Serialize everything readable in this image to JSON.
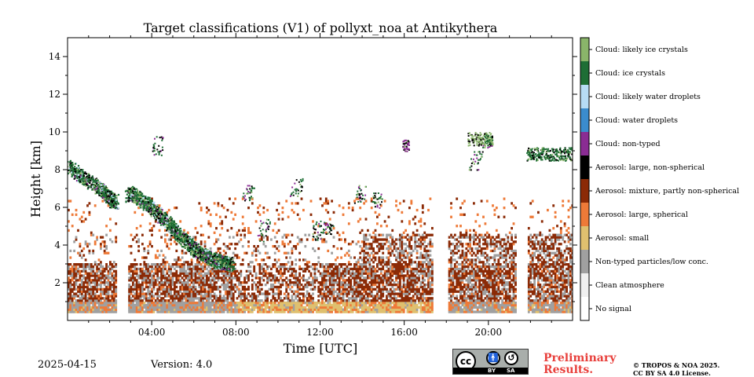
{
  "chart_data": {
    "type": "heatmap",
    "title": "Target classifications (V1) of pollyxt_noa at Antikythera",
    "xlabel": "Time [UTC]",
    "ylabel": "Height [km]",
    "xlim": [
      0,
      24
    ],
    "ylim": [
      0,
      15
    ],
    "x_ticks": [
      {
        "value": 4,
        "label": "04:00"
      },
      {
        "value": 8,
        "label": "08:00"
      },
      {
        "value": 12,
        "label": "12:00"
      },
      {
        "value": 16,
        "label": "16:00"
      },
      {
        "value": 20,
        "label": "20:00"
      }
    ],
    "y_ticks": [
      {
        "value": 2,
        "label": "2"
      },
      {
        "value": 4,
        "label": "4"
      },
      {
        "value": 6,
        "label": "6"
      },
      {
        "value": 8,
        "label": "8"
      },
      {
        "value": 10,
        "label": "10"
      },
      {
        "value": 12,
        "label": "12"
      },
      {
        "value": 14,
        "label": "14"
      }
    ],
    "classes": [
      {
        "id": 0,
        "label": "No signal",
        "color": "#ffffff"
      },
      {
        "id": 1,
        "label": "Clean atmosphere",
        "color": "#f0f0f0"
      },
      {
        "id": 2,
        "label": "Non-typed particles/low conc.",
        "color": "#a0a0a0"
      },
      {
        "id": 3,
        "label": "Aerosol: small",
        "color": "#dfc06f"
      },
      {
        "id": 4,
        "label": "Aerosol: large, spherical",
        "color": "#ee7a38"
      },
      {
        "id": 5,
        "label": "Aerosol: mixture, partly non-spherical",
        "color": "#8b2a06"
      },
      {
        "id": 6,
        "label": "Aerosol: large, non-spherical",
        "color": "#000000"
      },
      {
        "id": 7,
        "label": "Cloud: non-typed",
        "color": "#8a2c93"
      },
      {
        "id": 8,
        "label": "Cloud: water droplets",
        "color": "#3b8ccd"
      },
      {
        "id": 9,
        "label": "Cloud: likely water droplets",
        "color": "#b7dcf5"
      },
      {
        "id": 10,
        "label": "Cloud: ice crystals",
        "color": "#1e6e35"
      },
      {
        "id": 11,
        "label": "Cloud: likely ice crystals",
        "color": "#8ab56a"
      }
    ],
    "no_signal_gaps_hours": [
      [
        2.3,
        2.8
      ],
      [
        17.3,
        18.0
      ],
      [
        21.3,
        21.8
      ]
    ],
    "layers": [
      {
        "name": "near-surface non-typed layer",
        "class": 2,
        "t": [
          0.0,
          24.0
        ],
        "h": [
          0.4,
          1.0
        ]
      },
      {
        "name": "aerosol mixture layer",
        "class": 5,
        "t": [
          0.0,
          24.0
        ],
        "h": [
          1.0,
          4.5
        ]
      },
      {
        "name": "small aerosol near surface",
        "class": 3,
        "t": [
          8.0,
          17.3
        ],
        "h": [
          0.4,
          1.0
        ]
      },
      {
        "name": "large spherical aerosol near surface",
        "class": 4,
        "t": [
          0.0,
          9.0
        ],
        "h": [
          0.4,
          1.3
        ]
      },
      {
        "name": "descending ice cloud",
        "class": 10,
        "points": [
          [
            0.0,
            8.2
          ],
          [
            1.5,
            7.0
          ],
          [
            2.2,
            6.3
          ],
          [
            3.0,
            6.8
          ],
          [
            4.0,
            6.0
          ],
          [
            5.0,
            4.9
          ],
          [
            6.0,
            3.8
          ],
          [
            7.0,
            3.2
          ],
          [
            7.8,
            3.0
          ]
        ]
      },
      {
        "name": "high ice cloud late",
        "class": 10,
        "t": [
          21.8,
          24.0
        ],
        "h": [
          8.5,
          9.2
        ]
      },
      {
        "name": "cloud near 20 UTC",
        "class": 11,
        "t": [
          19.0,
          20.2
        ],
        "h": [
          9.3,
          10.0
        ]
      },
      {
        "name": "non-typed cloud patch",
        "class": 7,
        "t": [
          15.9,
          16.2
        ],
        "h": [
          9.0,
          9.6
        ]
      }
    ],
    "colorbar": "right",
    "date": "2025-04-15",
    "version": "Version: 4.0"
  },
  "footer": {
    "date": "2025-04-15",
    "version": "Version: 4.0",
    "preliminary_line1": "Preliminary",
    "preliminary_line2": "Results.",
    "copyright_line1": "© TROPOS & NOA 2025.",
    "copyright_line2": "CC BY SA 4.0 License."
  },
  "license_badge": {
    "cc_text": "cc",
    "by_text": "BY",
    "sa_text": "SA",
    "icon": "cc-by-sa-icon"
  }
}
